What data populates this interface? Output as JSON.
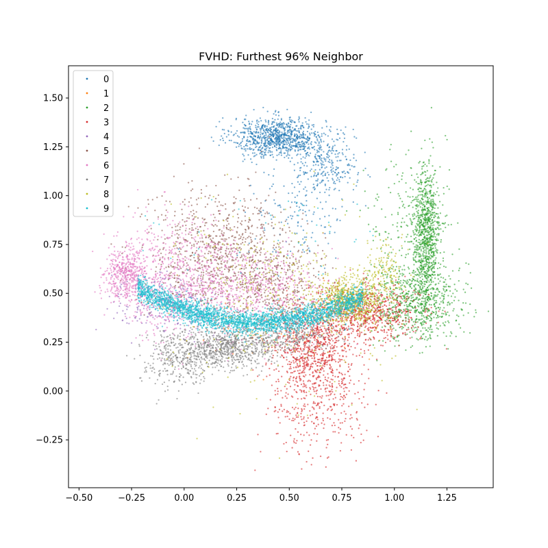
{
  "chart_data": {
    "type": "scatter",
    "title": "FVHD: Furthest 96% Neighbor",
    "xlabel": "",
    "ylabel": "",
    "xlim": [
      -0.55,
      1.47
    ],
    "ylim": [
      -0.495,
      1.665
    ],
    "xticks": [
      -0.5,
      -0.25,
      0.0,
      0.25,
      0.5,
      0.75,
      1.0,
      1.25
    ],
    "xtick_labels": [
      "−0.50",
      "−0.25",
      "0.00",
      "0.25",
      "0.50",
      "0.75",
      "1.00",
      "1.25"
    ],
    "yticks": [
      -0.25,
      0.0,
      0.25,
      0.5,
      0.75,
      1.0,
      1.25,
      1.5
    ],
    "ytick_labels": [
      "−0.25",
      "0.00",
      "0.25",
      "0.50",
      "0.75",
      "1.00",
      "1.25",
      "1.50"
    ],
    "grid": false,
    "legend_position": "top-left",
    "marker": "small dots, alpha ~0.6",
    "series": [
      {
        "name": "0",
        "color": "#1f77b4",
        "clusters": [
          {
            "cx": 0.45,
            "cy": 1.3,
            "sx": 0.11,
            "sy": 0.05,
            "n": 900
          },
          {
            "cx": 0.68,
            "cy": 1.15,
            "sx": 0.07,
            "sy": 0.08,
            "n": 250
          },
          {
            "cx": 0.55,
            "cy": 0.95,
            "sx": 0.12,
            "sy": 0.15,
            "n": 150
          }
        ]
      },
      {
        "name": "1",
        "color": "#ff7f0e",
        "clusters": [
          {
            "cx": 0.5,
            "cy": 0.3,
            "sx": 0.25,
            "sy": 0.08,
            "n": 60
          }
        ]
      },
      {
        "name": "2",
        "color": "#2ca02c",
        "clusters": [
          {
            "cx": 1.15,
            "cy": 0.78,
            "sx": 0.035,
            "sy": 0.18,
            "n": 900
          },
          {
            "cx": 1.1,
            "cy": 0.45,
            "sx": 0.11,
            "sy": 0.1,
            "n": 700
          },
          {
            "cx": 1.05,
            "cy": 0.85,
            "sx": 0.1,
            "sy": 0.2,
            "n": 200
          }
        ]
      },
      {
        "name": "3",
        "color": "#d62728",
        "clusters": [
          {
            "cx": 0.62,
            "cy": 0.22,
            "sx": 0.1,
            "sy": 0.12,
            "n": 900
          },
          {
            "cx": 0.87,
            "cy": 0.4,
            "sx": 0.12,
            "sy": 0.07,
            "n": 700
          },
          {
            "cx": 0.65,
            "cy": -0.12,
            "sx": 0.12,
            "sy": 0.12,
            "n": 250
          }
        ]
      },
      {
        "name": "4",
        "color": "#9467bd",
        "clusters": [
          {
            "cx": -0.1,
            "cy": 0.45,
            "sx": 0.12,
            "sy": 0.08,
            "n": 250
          }
        ]
      },
      {
        "name": "5",
        "color": "#8c564b",
        "clusters": [
          {
            "cx": 0.15,
            "cy": 0.7,
            "sx": 0.17,
            "sy": 0.17,
            "n": 800
          },
          {
            "cx": 0.42,
            "cy": 0.55,
            "sx": 0.12,
            "sy": 0.12,
            "n": 400
          }
        ]
      },
      {
        "name": "6",
        "color": "#e377c2",
        "clusters": [
          {
            "cx": -0.28,
            "cy": 0.6,
            "sx": 0.05,
            "sy": 0.06,
            "n": 400
          },
          {
            "cx": -0.05,
            "cy": 0.58,
            "sx": 0.14,
            "sy": 0.15,
            "n": 700
          },
          {
            "cx": 0.3,
            "cy": 0.5,
            "sx": 0.18,
            "sy": 0.12,
            "n": 600
          }
        ]
      },
      {
        "name": "7",
        "color": "#7f7f7f",
        "clusters": [
          {
            "cx": 0.2,
            "cy": 0.22,
            "sx": 0.12,
            "sy": 0.05,
            "n": 700
          },
          {
            "cx": -0.02,
            "cy": 0.17,
            "sx": 0.1,
            "sy": 0.08,
            "n": 350
          },
          {
            "cx": 0.5,
            "cy": 0.28,
            "sx": 0.12,
            "sy": 0.04,
            "n": 250
          }
        ]
      },
      {
        "name": "8",
        "color": "#bcbd22",
        "clusters": [
          {
            "cx": 0.78,
            "cy": 0.46,
            "sx": 0.08,
            "sy": 0.06,
            "n": 700
          },
          {
            "cx": 0.45,
            "cy": 0.45,
            "sx": 0.25,
            "sy": 0.25,
            "n": 350
          },
          {
            "cx": 0.95,
            "cy": 0.6,
            "sx": 0.05,
            "sy": 0.08,
            "n": 150
          }
        ]
      },
      {
        "name": "9",
        "color": "#17becf",
        "curve": {
          "from": -0.22,
          "to": 0.85,
          "n": 2600
        }
      }
    ]
  }
}
